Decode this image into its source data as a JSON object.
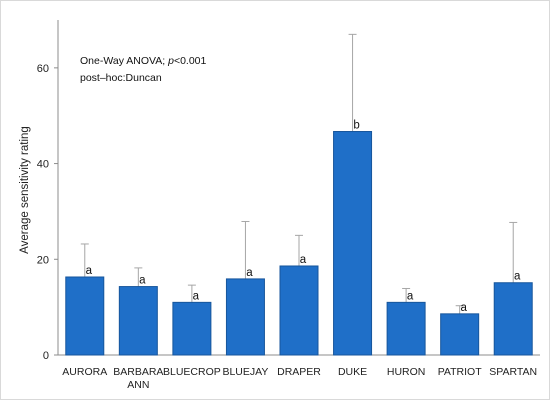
{
  "chart_data": {
    "type": "bar",
    "categories": [
      "AURORA",
      "BARBARA ANN",
      "BLUECROP",
      "BLUEJAY",
      "DRAPER",
      "DUKE",
      "HURON",
      "PATRIOT",
      "SPARTAN"
    ],
    "category_lines": [
      [
        "AURORA"
      ],
      [
        "BARBARA",
        "ANN"
      ],
      [
        "BLUECROP"
      ],
      [
        "BLUEJAY"
      ],
      [
        "DRAPER"
      ],
      [
        "DUKE"
      ],
      [
        "HURON"
      ],
      [
        "PATRIOT"
      ],
      [
        "SPARTAN"
      ]
    ],
    "values": [
      16.3,
      14.3,
      11.0,
      15.9,
      18.6,
      46.7,
      11.0,
      8.6,
      15.1
    ],
    "error_upper": [
      23.2,
      18.2,
      14.6,
      27.9,
      25.0,
      67.0,
      13.9,
      10.3,
      27.7
    ],
    "significance_letters": [
      "a",
      "a",
      "a",
      "a",
      "a",
      "b",
      "a",
      "a",
      "a"
    ],
    "title": "",
    "xlabel": "",
    "ylabel": "Average sensitivity rating",
    "ylim": [
      0,
      70
    ],
    "yticks": [
      0,
      20,
      40,
      60
    ],
    "bar_color": "#1f6fc8",
    "bar_edge_color": "#17569c",
    "errorbar_color": "#a6a6a6",
    "grid": false,
    "annotations": {
      "anova_prefix": "One-Way ANOVA; ",
      "anova_p_symbol": "p",
      "anova_p_value": "<0.001",
      "posthoc": "post–hoc:Duncan"
    }
  }
}
